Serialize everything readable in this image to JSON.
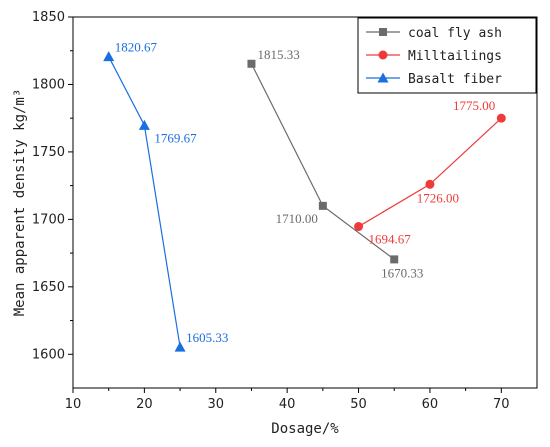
{
  "chart_data": {
    "type": "line",
    "xlabel": "Dosage/%",
    "ylabel": "Mean apparent density kg/m³",
    "xlim": [
      10,
      75
    ],
    "ylim": [
      1575,
      1850
    ],
    "xticks": [
      10,
      20,
      30,
      40,
      50,
      60,
      70
    ],
    "yticks": [
      1600,
      1650,
      1700,
      1750,
      1800,
      1850
    ],
    "grid": false,
    "legend_position": "top-right",
    "series": [
      {
        "name": "coal fly ash",
        "color": "#6b6b6b",
        "marker": "square",
        "x": [
          35,
          45,
          55
        ],
        "y": [
          1815.33,
          1710.0,
          1670.33
        ],
        "labels": [
          "1815.33",
          "1710.00",
          "1670.33"
        ],
        "label_pos": [
          "right",
          "left-below",
          "below"
        ]
      },
      {
        "name": "Milltailings",
        "color": "#f03a3a",
        "marker": "circle",
        "x": [
          50,
          60,
          70
        ],
        "y": [
          1694.67,
          1726.0,
          1775.0
        ],
        "labels": [
          "1694.67",
          "1726.00",
          "1775.00"
        ],
        "label_pos": [
          "right-below",
          "below",
          "left-above"
        ]
      },
      {
        "name": "Basalt fiber",
        "color": "#1a6fe0",
        "marker": "triangle",
        "x": [
          15,
          20,
          25
        ],
        "y": [
          1820.67,
          1769.67,
          1605.33
        ],
        "labels": [
          "1820.67",
          "1769.67",
          "1605.33"
        ],
        "label_pos": [
          "right",
          "right-below",
          "right"
        ]
      }
    ]
  }
}
